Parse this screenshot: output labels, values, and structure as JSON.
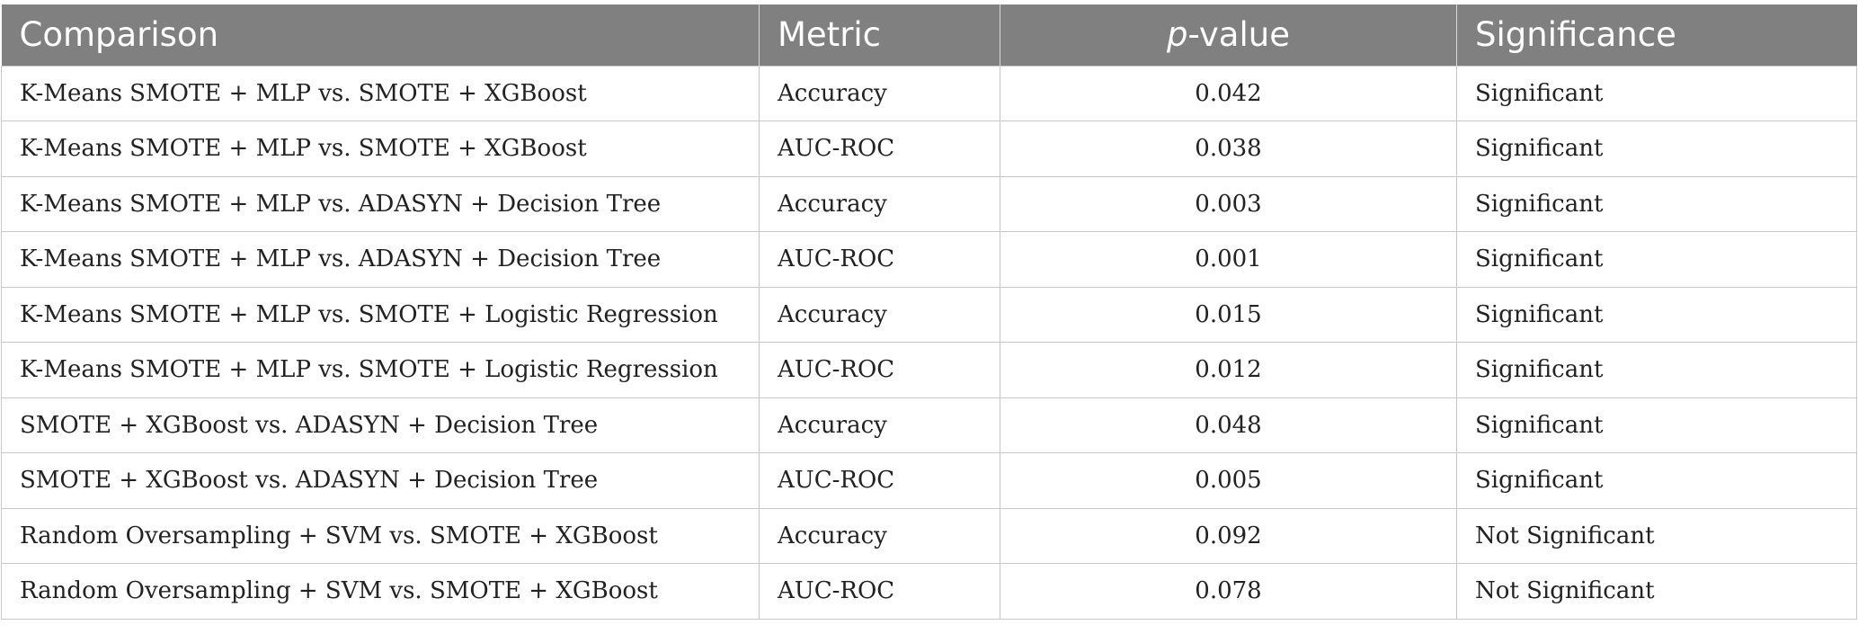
{
  "table": {
    "headers": {
      "comparison": "Comparison",
      "metric": "Metric",
      "pvalue_italic": "p",
      "pvalue_rest": "-value",
      "significance": "Significance"
    },
    "rows": [
      {
        "comparison": "K-Means SMOTE + MLP vs. SMOTE + XGBoost",
        "metric": "Accuracy",
        "pvalue": "0.042",
        "significance": "Significant"
      },
      {
        "comparison": "K-Means SMOTE + MLP vs. SMOTE + XGBoost",
        "metric": "AUC-ROC",
        "pvalue": "0.038",
        "significance": "Significant"
      },
      {
        "comparison": "K-Means SMOTE + MLP vs. ADASYN + Decision Tree",
        "metric": "Accuracy",
        "pvalue": "0.003",
        "significance": "Significant"
      },
      {
        "comparison": "K-Means SMOTE + MLP vs. ADASYN + Decision Tree",
        "metric": "AUC-ROC",
        "pvalue": "0.001",
        "significance": "Significant"
      },
      {
        "comparison": "K-Means SMOTE + MLP vs. SMOTE + Logistic Regression",
        "metric": "Accuracy",
        "pvalue": "0.015",
        "significance": "Significant"
      },
      {
        "comparison": "K-Means SMOTE + MLP vs. SMOTE + Logistic Regression",
        "metric": "AUC-ROC",
        "pvalue": "0.012",
        "significance": "Significant"
      },
      {
        "comparison": "SMOTE + XGBoost vs. ADASYN + Decision Tree",
        "metric": "Accuracy",
        "pvalue": "0.048",
        "significance": "Significant"
      },
      {
        "comparison": "SMOTE + XGBoost vs. ADASYN + Decision Tree",
        "metric": "AUC-ROC",
        "pvalue": "0.005",
        "significance": "Significant"
      },
      {
        "comparison": "Random Oversampling + SVM vs. SMOTE + XGBoost",
        "metric": "Accuracy",
        "pvalue": "0.092",
        "significance": "Not Significant"
      },
      {
        "comparison": "Random Oversampling + SVM vs. SMOTE + XGBoost",
        "metric": "AUC-ROC",
        "pvalue": "0.078",
        "significance": "Not Significant"
      }
    ]
  }
}
